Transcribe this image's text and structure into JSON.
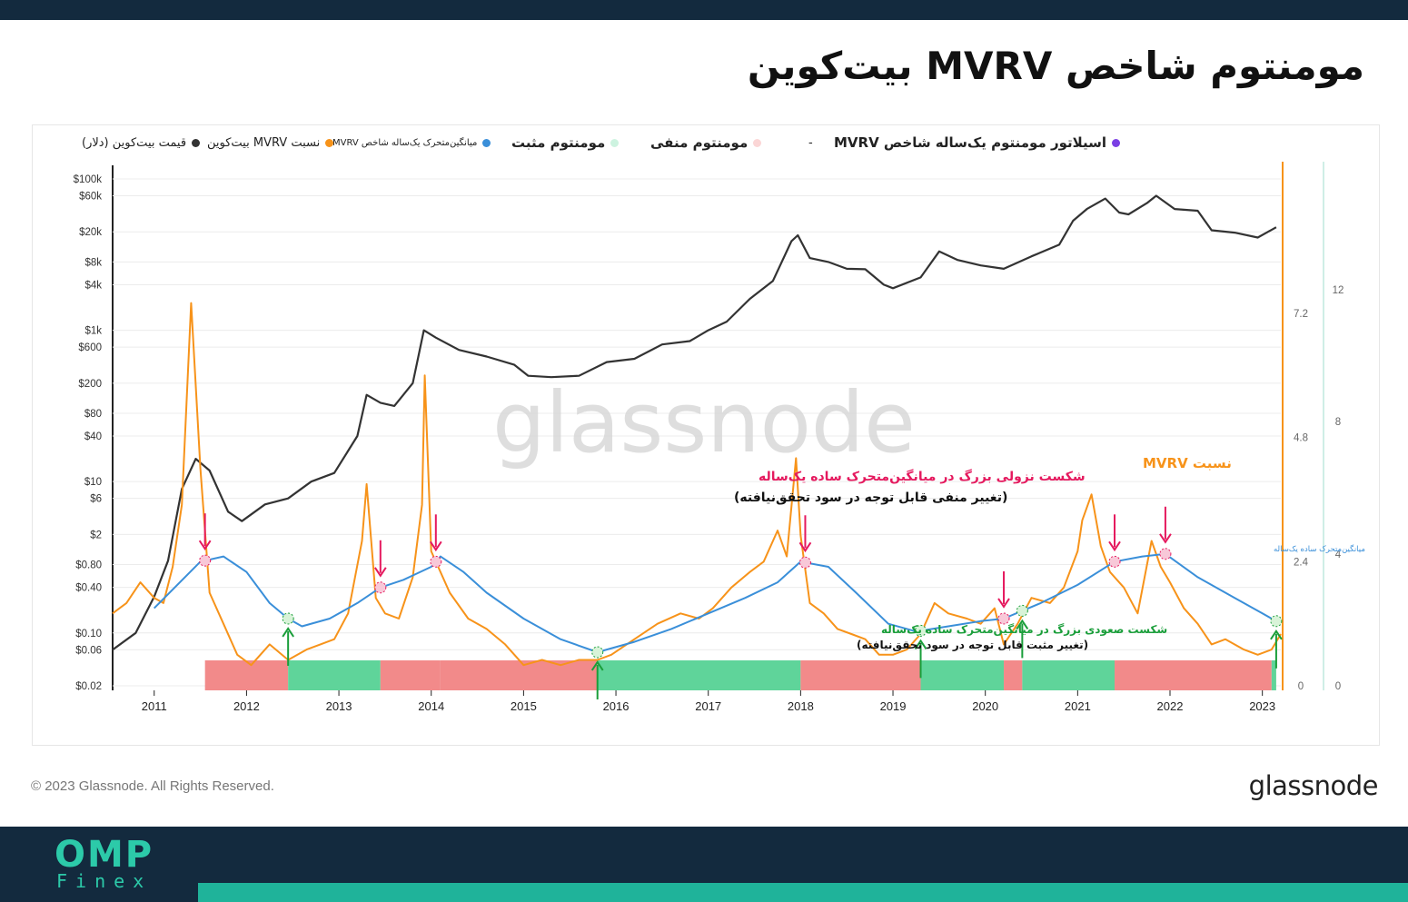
{
  "header": {
    "title": "مومنتوم شاخص MVRV بیت‌کوین"
  },
  "legend": {
    "price": "قیمت بیت‌کوین (دلار)",
    "mvrv": "نسبت MVRV بیت‌کوین",
    "sma": "میانگین‌متحرک یک‌ساله شاخص MVRV",
    "positive": "مومنتوم مثبت",
    "negative": "مومنتوم منفی",
    "dash": "-",
    "oscillator": "اسیلاتور مومنتوم یک‌ساله شاخص MVRV"
  },
  "colors": {
    "price": "#333333",
    "mvrv": "#f7931a",
    "sma": "#3a8fd9",
    "positive": "#5fd49a",
    "negative": "#f28a8a",
    "oscillator": "#7b3fe4",
    "bear_arrow": "#e5195e",
    "bull_arrow": "#1a9e3a",
    "watermark": "#d6d6d6"
  },
  "watermark": "glassnode",
  "footer": {
    "copyright": "© 2023 Glassnode. All Rights Reserved.",
    "brand": "glassnode",
    "logo_top": "OMP",
    "logo_bottom": "Finex"
  },
  "chart_data": {
    "type": "line",
    "x_axis": {
      "ticks": [
        "2011",
        "2012",
        "2013",
        "2014",
        "2015",
        "2016",
        "2017",
        "2018",
        "2019",
        "2020",
        "2021",
        "2022",
        "2023"
      ],
      "range": [
        2010.55,
        2023.2
      ]
    },
    "y_axis_left": {
      "scale": "log",
      "ticks": [
        "$100k",
        "$60k",
        "$20k",
        "$8k",
        "$4k",
        "$1k",
        "$600",
        "$200",
        "$80",
        "$40",
        "$10",
        "$6",
        "$2",
        "$0.80",
        "$0.40",
        "$0.10",
        "$0.06",
        "$0.02"
      ]
    },
    "y_axis_right_1": {
      "ticks": [
        "7.2",
        "4.8",
        "2.4",
        "0"
      ],
      "range": [
        0,
        8.2
      ]
    },
    "y_axis_right_2": {
      "ticks": [
        "12",
        "8",
        "4",
        "0"
      ]
    },
    "series": [
      {
        "name": "قیمت بیت‌کوین (دلار)",
        "axis": "left",
        "x": [
          2010.55,
          2010.8,
          2011.0,
          2011.15,
          2011.3,
          2011.45,
          2011.6,
          2011.8,
          2011.95,
          2012.2,
          2012.45,
          2012.7,
          2012.95,
          2013.2,
          2013.3,
          2013.45,
          2013.6,
          2013.8,
          2013.92,
          2014.05,
          2014.3,
          2014.6,
          2014.9,
          2015.05,
          2015.3,
          2015.6,
          2015.9,
          2016.2,
          2016.5,
          2016.8,
          2017.0,
          2017.2,
          2017.45,
          2017.7,
          2017.9,
          2017.97,
          2018.1,
          2018.3,
          2018.5,
          2018.7,
          2018.9,
          2019.0,
          2019.3,
          2019.5,
          2019.7,
          2019.95,
          2020.2,
          2020.5,
          2020.8,
          2020.95,
          2021.1,
          2021.3,
          2021.45,
          2021.55,
          2021.75,
          2021.85,
          2022.05,
          2022.3,
          2022.45,
          2022.7,
          2022.95,
          2023.15
        ],
        "y": [
          0.06,
          0.1,
          0.3,
          0.9,
          8,
          20,
          14,
          4,
          3,
          5,
          6,
          10,
          13,
          40,
          140,
          110,
          100,
          200,
          1000,
          800,
          550,
          450,
          350,
          250,
          240,
          250,
          380,
          420,
          650,
          720,
          1000,
          1300,
          2600,
          4500,
          15000,
          18000,
          9000,
          8000,
          6500,
          6400,
          4000,
          3600,
          5000,
          11000,
          8500,
          7200,
          6500,
          9500,
          13500,
          28000,
          40000,
          55000,
          36000,
          34000,
          48000,
          60000,
          40000,
          38000,
          21000,
          19500,
          16800,
          23000
        ]
      },
      {
        "name": "نسبت MVRV",
        "axis": "right_1",
        "x": [
          2010.55,
          2010.7,
          2010.85,
          2011.0,
          2011.1,
          2011.2,
          2011.3,
          2011.4,
          2011.5,
          2011.6,
          2011.75,
          2011.9,
          2012.05,
          2012.25,
          2012.45,
          2012.65,
          2012.8,
          2012.95,
          2013.1,
          2013.25,
          2013.3,
          2013.4,
          2013.5,
          2013.65,
          2013.8,
          2013.9,
          2013.93,
          2014.0,
          2014.2,
          2014.4,
          2014.6,
          2014.8,
          2015.0,
          2015.2,
          2015.4,
          2015.6,
          2015.8,
          2015.95,
          2016.2,
          2016.45,
          2016.7,
          2016.9,
          2017.05,
          2017.25,
          2017.45,
          2017.6,
          2017.75,
          2017.85,
          2017.95,
          2018.0,
          2018.1,
          2018.25,
          2018.4,
          2018.55,
          2018.7,
          2018.85,
          2019.0,
          2019.15,
          2019.3,
          2019.45,
          2019.6,
          2019.8,
          2019.95,
          2020.1,
          2020.2,
          2020.35,
          2020.5,
          2020.7,
          2020.85,
          2021.0,
          2021.05,
          2021.15,
          2021.25,
          2021.35,
          2021.5,
          2021.65,
          2021.8,
          2021.9,
          2022.0,
          2022.15,
          2022.3,
          2022.45,
          2022.6,
          2022.8,
          2022.95,
          2023.1,
          2023.2
        ],
        "y": [
          1.4,
          1.6,
          2.0,
          1.7,
          1.6,
          2.3,
          3.5,
          7.4,
          4.2,
          1.8,
          1.2,
          0.6,
          0.4,
          0.8,
          0.5,
          0.7,
          0.8,
          0.9,
          1.4,
          2.8,
          3.9,
          1.7,
          1.4,
          1.3,
          2.1,
          3.5,
          6.0,
          2.6,
          1.8,
          1.3,
          1.1,
          0.8,
          0.4,
          0.5,
          0.4,
          0.5,
          0.5,
          0.6,
          0.9,
          1.2,
          1.4,
          1.3,
          1.5,
          1.9,
          2.2,
          2.4,
          3.0,
          2.5,
          4.4,
          2.9,
          1.6,
          1.4,
          1.1,
          1.0,
          0.9,
          0.6,
          0.6,
          0.7,
          1.0,
          1.6,
          1.4,
          1.3,
          1.2,
          1.5,
          0.8,
          1.2,
          1.7,
          1.6,
          1.9,
          2.6,
          3.2,
          3.7,
          2.7,
          2.2,
          1.9,
          1.4,
          2.8,
          2.3,
          2.0,
          1.5,
          1.2,
          0.8,
          0.9,
          0.7,
          0.6,
          0.7,
          1.0
        ]
      },
      {
        "name": "میانگین‌متحرک یک‌ساله",
        "axis": "right_1",
        "x": [
          2011.0,
          2011.5,
          2011.75,
          2012.0,
          2012.25,
          2012.45,
          2012.6,
          2012.9,
          2013.2,
          2013.45,
          2013.7,
          2014.0,
          2014.1,
          2014.35,
          2014.6,
          2015.0,
          2015.4,
          2015.8,
          2016.2,
          2016.6,
          2017.0,
          2017.4,
          2017.75,
          2018.0,
          2018.3,
          2018.6,
          2018.95,
          2019.25,
          2019.6,
          2019.95,
          2020.2,
          2020.6,
          2021.0,
          2021.4,
          2021.7,
          2021.95,
          2022.3,
          2022.7,
          2023.0,
          2023.15
        ],
        "y": [
          1.5,
          2.4,
          2.5,
          2.2,
          1.6,
          1.3,
          1.15,
          1.3,
          1.6,
          1.9,
          2.05,
          2.3,
          2.5,
          2.2,
          1.8,
          1.3,
          0.9,
          0.65,
          0.85,
          1.1,
          1.4,
          1.7,
          2.0,
          2.4,
          2.3,
          1.8,
          1.2,
          1.05,
          1.15,
          1.25,
          1.3,
          1.6,
          1.95,
          2.4,
          2.5,
          2.55,
          2.1,
          1.7,
          1.4,
          1.25
        ]
      },
      {
        "name": "مومنتوم مثبت / منفی",
        "axis": "bar",
        "segments": [
          {
            "from": 2011.55,
            "to": 2012.45,
            "state": "negative"
          },
          {
            "from": 2012.45,
            "to": 2013.45,
            "state": "positive"
          },
          {
            "from": 2013.45,
            "to": 2014.1,
            "state": "negative"
          },
          {
            "from": 2014.1,
            "to": 2015.8,
            "state": "negative"
          },
          {
            "from": 2015.8,
            "to": 2018.0,
            "state": "positive"
          },
          {
            "from": 2018.0,
            "to": 2019.3,
            "state": "negative"
          },
          {
            "from": 2019.3,
            "to": 2020.2,
            "state": "positive"
          },
          {
            "from": 2020.2,
            "to": 2020.4,
            "state": "negative"
          },
          {
            "from": 2020.4,
            "to": 2021.4,
            "state": "positive"
          },
          {
            "from": 2021.4,
            "to": 2023.1,
            "state": "negative"
          },
          {
            "from": 2023.1,
            "to": 2023.15,
            "state": "positive"
          }
        ]
      }
    ],
    "annotations": {
      "mvrv_label": "نسبت MVRV",
      "sma_label": "میانگین‌متحرک ساده یک‌ساله",
      "bear_text_1": "شکست نزولی بزرگ در میانگین‌متحرک ساده یک‌ساله",
      "bear_text_2": "(تغییر منفی قابل توجه در سود تحقق‌نیافته)",
      "bull_text_1": "شکست صعودی بزرگ در میانگین‌متحرک ساده یک‌ساله",
      "bull_text_2": "(تغییر مثبت قابل توجه در سود تحقق‌نیافته)",
      "bear_crosses": [
        2011.55,
        2013.45,
        2014.05,
        2018.05,
        2020.2,
        2021.4,
        2021.95
      ],
      "bull_crosses": [
        2012.45,
        2015.8,
        2019.3,
        2020.4,
        2023.15
      ]
    }
  }
}
